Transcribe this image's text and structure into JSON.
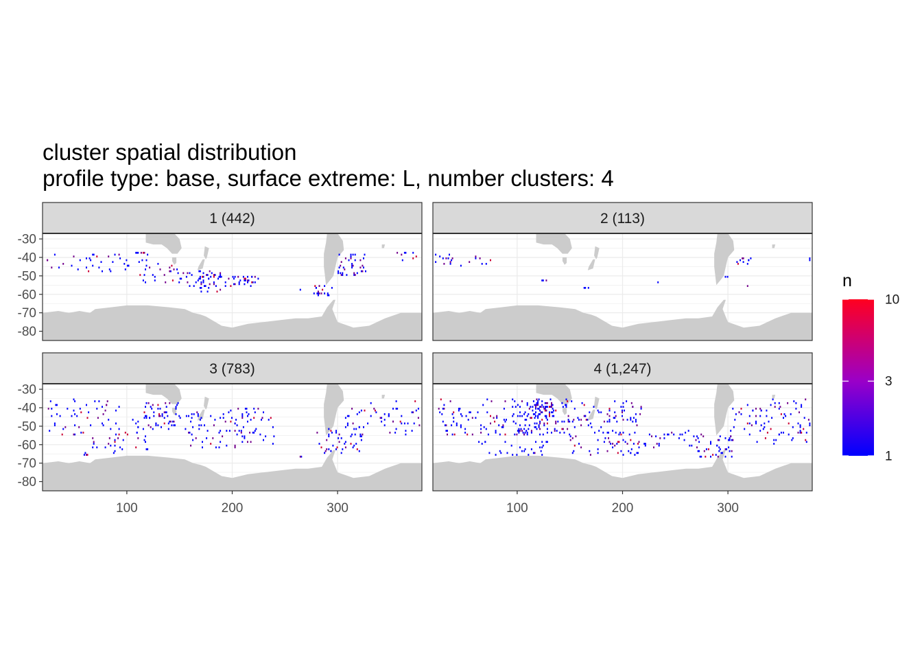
{
  "title_line1": "cluster spatial distribution",
  "title_line2": "profile type: base, surface extreme: L, number clusters: 4",
  "chart_data": {
    "type": "heatmap",
    "facet_labels": [
      "1 (442)",
      "2 (113)",
      "3 (783)",
      "4 (1,247)"
    ],
    "cluster_counts": [
      442,
      113,
      783,
      1247
    ],
    "x_ticks": [
      100,
      200,
      300
    ],
    "x_tick_labels": [
      "100",
      "200",
      "300"
    ],
    "y_ticks": [
      -30,
      -40,
      -50,
      -60,
      -70,
      -80
    ],
    "y_tick_labels": [
      "-30",
      "-40",
      "-50",
      "-60",
      "-70",
      "-80"
    ],
    "xlim": [
      20,
      380
    ],
    "ylim": [
      -85,
      -27
    ],
    "grid": true,
    "color_scale": {
      "title": "n",
      "type": "log",
      "range": [
        1,
        10
      ],
      "breaks": [
        1,
        3,
        10
      ],
      "break_labels": [
        "1",
        "3",
        "10"
      ],
      "low_color": "#0000ff",
      "high_color": "#ff0000"
    },
    "land_color": "#cccccc",
    "strip_color": "#d9d9d9",
    "legend_position": "right"
  }
}
